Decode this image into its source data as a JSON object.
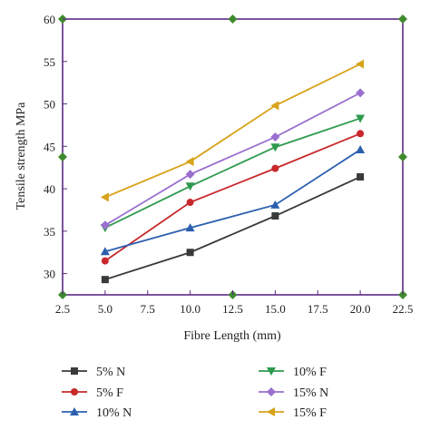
{
  "chart_data": {
    "type": "line",
    "title": "",
    "xlabel": "Fibre Length (mm)",
    "ylabel": "Tensile strength MPa",
    "xlim": [
      2.5,
      22.5
    ],
    "ylim": [
      27.5,
      60
    ],
    "x_ticks": [
      "2.5",
      "5.0",
      "7.5",
      "10.0",
      "12.5",
      "15.0",
      "17.5",
      "20.0",
      "22.5"
    ],
    "x_tick_values": [
      2.5,
      5,
      7.5,
      10,
      12.5,
      15,
      17.5,
      20,
      22.5
    ],
    "y_ticks": [
      "30",
      "35",
      "40",
      "45",
      "50",
      "55",
      "60"
    ],
    "y_tick_values": [
      30,
      35,
      40,
      45,
      50,
      55,
      60
    ],
    "grid": false,
    "legend_placement": "bottom",
    "x": [
      5,
      10,
      15,
      20
    ],
    "series": [
      {
        "name": "5% N",
        "values": [
          29.3,
          32.5,
          36.8,
          41.4
        ],
        "color": "#3a3a3a",
        "marker": "square"
      },
      {
        "name": "5% F",
        "values": [
          31.5,
          38.4,
          42.4,
          46.5
        ],
        "color": "#c8282b",
        "marker": "circle"
      },
      {
        "name": "10% N",
        "values": [
          32.6,
          35.4,
          38.1,
          44.6
        ],
        "color": "#2b5fae",
        "marker": "triangle-up"
      },
      {
        "name": "10% F",
        "values": [
          35.4,
          40.3,
          44.9,
          48.3
        ],
        "color": "#2e9a4e",
        "marker": "triangle-down"
      },
      {
        "name": "15% N",
        "values": [
          35.7,
          41.7,
          46.1,
          51.3
        ],
        "color": "#9a6fcf",
        "marker": "diamond"
      },
      {
        "name": "15% F",
        "values": [
          39.0,
          43.2,
          49.8,
          54.7
        ],
        "color": "#d8a31a",
        "marker": "triangle-left"
      }
    ],
    "frame_color": "#5b2a86",
    "frame_marker_color": "#3f8a2f"
  }
}
